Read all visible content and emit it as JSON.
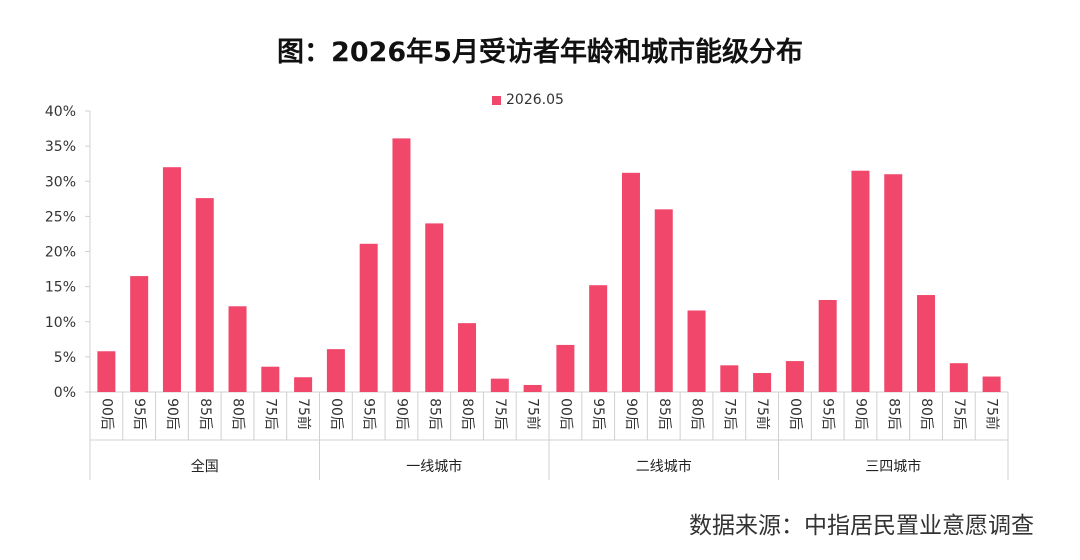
{
  "title": "图：2026年5月受访者年龄和城市能级分布",
  "source": "数据来源：中指居民置业意愿调查",
  "chart_data": {
    "type": "bar",
    "title": "图：2026年5月受访者年龄和城市能级分布",
    "xlabel": "",
    "ylabel": "",
    "ylim": [
      0,
      0.4
    ],
    "y_ticks": [
      "0%",
      "5%",
      "10%",
      "15%",
      "20%",
      "25%",
      "30%",
      "35%",
      "40%"
    ],
    "legend_position": "top-center",
    "grid": false,
    "bar_color": "#f0476a",
    "age_categories": [
      "00后",
      "95后",
      "90后",
      "85后",
      "80后",
      "75后",
      "75前"
    ],
    "groups": [
      "全国",
      "一线城市",
      "二线城市",
      "三四城市"
    ],
    "series": [
      {
        "name": "2026.05",
        "values": [
          [
            0.058,
            0.165,
            0.32,
            0.276,
            0.122,
            0.036,
            0.021
          ],
          [
            0.061,
            0.211,
            0.361,
            0.24,
            0.098,
            0.019,
            0.01
          ],
          [
            0.067,
            0.152,
            0.312,
            0.26,
            0.116,
            0.038,
            0.027
          ],
          [
            0.044,
            0.131,
            0.315,
            0.31,
            0.138,
            0.041,
            0.022
          ]
        ]
      }
    ]
  }
}
